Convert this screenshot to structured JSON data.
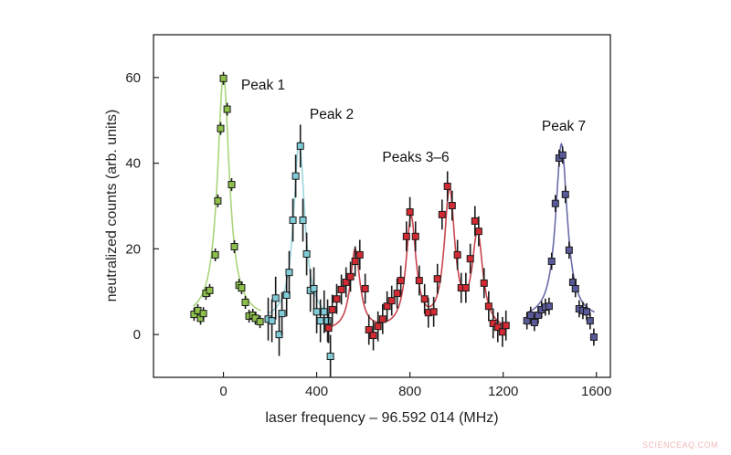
{
  "chart_data": {
    "type": "scatter",
    "xlabel": "laser frequency – 96.592 014  (MHz)",
    "ylabel": "neutralized counts  (arb. units)",
    "xlim": [
      -300,
      1660
    ],
    "ylim": [
      -10,
      70
    ],
    "xticks": [
      0,
      400,
      800,
      1200,
      1600
    ],
    "yticks": [
      0,
      20,
      40,
      60
    ],
    "grid": false,
    "annotations": [
      {
        "text": "Peak 1",
        "x": 60,
        "y": 63
      },
      {
        "text": "Peak 2",
        "x": 470,
        "y": 51
      },
      {
        "text": "Peaks 3–6",
        "x": 827,
        "y": 40
      },
      {
        "text": "Peak 7",
        "x": 1465,
        "y": 49
      }
    ],
    "series": [
      {
        "color": "#8cc04a",
        "line": "#a9d47a",
        "yerr": 1.5,
        "x": [
          -126,
          -110,
          -98,
          -86,
          -75,
          -59,
          -35,
          -24,
          -12,
          0,
          16,
          35,
          47,
          67,
          78,
          94,
          110,
          126,
          137,
          157
        ],
        "y": [
          4.7,
          5.6,
          3.8,
          4.9,
          9.6,
          10.3,
          18.6,
          31.2,
          48.1,
          59.8,
          52.6,
          35,
          20.5,
          11.5,
          10.9,
          7.5,
          4.3,
          4.5,
          3.8,
          3.0
        ],
        "fit": {
          "baseline": 3.5,
          "range": [
            -130,
            160
          ],
          "peaks": [
            {
              "center": 0,
              "height": 57,
              "fwhm": 62
            }
          ]
        }
      },
      {
        "color": "#7fcbd6",
        "line": "#9ad6df",
        "yerr": 5,
        "x": [
          192,
          208,
          224,
          239,
          251,
          271,
          282,
          298,
          310,
          330,
          341,
          357,
          373,
          388,
          400,
          416,
          432,
          447,
          459
        ],
        "y": [
          3.6,
          3.2,
          8.5,
          0,
          4.9,
          9.2,
          14.5,
          26.7,
          37,
          44,
          26.7,
          18.8,
          10.3,
          10.7,
          5.3,
          3.2,
          5.3,
          3.2,
          -5.1
        ],
        "fit": {
          "baseline": 3,
          "range": [
            190,
            460
          ],
          "peaks": [
            {
              "center": 325,
              "height": 42,
              "fwhm": 58
            }
          ]
        }
      },
      {
        "color": "#d42a33",
        "line": "#c9444c",
        "yerr": 3.5,
        "x": [
          451,
          467,
          486,
          506,
          526,
          545,
          565,
          585,
          608,
          624,
          643,
          663,
          683,
          702,
          722,
          745,
          761,
          785,
          800,
          824,
          840,
          863,
          879,
          902,
          918,
          938,
          961,
          981,
          1004,
          1020,
          1040,
          1059,
          1079,
          1095,
          1118,
          1138,
          1157,
          1177,
          1197,
          1212
        ],
        "y": [
          1.5,
          5.8,
          8.3,
          10.5,
          12.2,
          13.5,
          17.1,
          18.6,
          10.7,
          1.1,
          -0.2,
          1.9,
          3.6,
          6.6,
          7.9,
          9.6,
          12.6,
          22.9,
          28.6,
          22.9,
          12.6,
          8.3,
          5.1,
          5.3,
          13.0,
          28.0,
          34.6,
          30.1,
          18.6,
          10.9,
          10.9,
          17.7,
          26.5,
          24.1,
          12.0,
          6.6,
          2.6,
          1.7,
          0.6,
          2.1
        ],
        "fit": {
          "baseline": 0.5,
          "range": [
            450,
            1215
          ],
          "peaks": [
            {
              "center": 565,
              "height": 19,
              "fwhm": 50
            },
            {
              "center": 805,
              "height": 26,
              "fwhm": 52
            },
            {
              "center": 970,
              "height": 32,
              "fwhm": 55
            },
            {
              "center": 1090,
              "height": 22,
              "fwhm": 55
            }
          ]
        }
      },
      {
        "color": "#5a5a9a",
        "line": "#6a6aa8",
        "yerr": 2,
        "x": [
          1302,
          1318,
          1334,
          1350,
          1365,
          1381,
          1397,
          1408,
          1424,
          1440,
          1455,
          1467,
          1483,
          1499,
          1510,
          1526,
          1542,
          1558,
          1573,
          1589
        ],
        "y": [
          3.2,
          4.5,
          2.8,
          4.5,
          5.8,
          6.4,
          6.6,
          17.1,
          30.6,
          41.2,
          41.9,
          32.7,
          19.7,
          12.2,
          10.7,
          6.0,
          5.6,
          5.3,
          3.2,
          -0.6
        ],
        "fit": {
          "baseline": 3.5,
          "range": [
            1300,
            1592
          ],
          "peaks": [
            {
              "center": 1450,
              "height": 41,
              "fwhm": 60
            }
          ]
        }
      }
    ]
  },
  "watermark": "SCIENCEAQ.COM"
}
